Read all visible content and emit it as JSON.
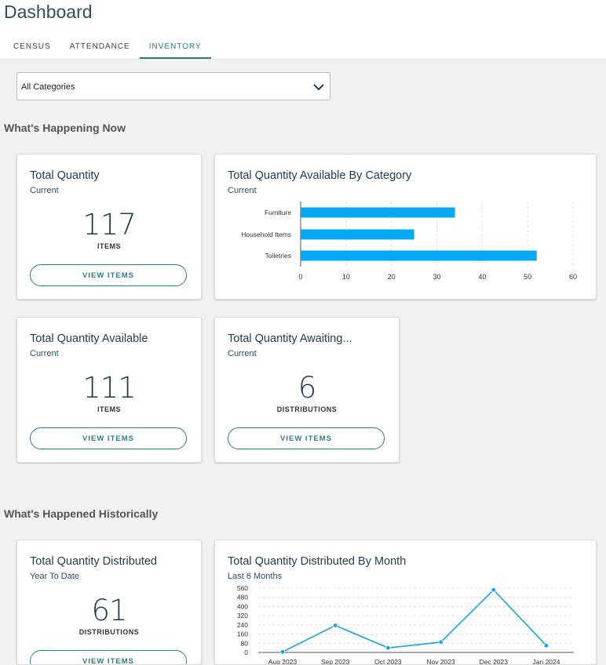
{
  "page": {
    "title": "Dashboard"
  },
  "tabs": [
    {
      "label": "CENSUS"
    },
    {
      "label": "ATTENDANCE"
    },
    {
      "label": "INVENTORY",
      "active": true
    }
  ],
  "filter": {
    "selected": "All Categories",
    "chevron_icon": "chevron-down-icon"
  },
  "sections": {
    "now": "What's Happening Now",
    "historic": "What's Happened Historically"
  },
  "cards": {
    "total_quantity": {
      "title": "Total Quantity",
      "subtitle": "Current",
      "value": "117",
      "unit": "ITEMS",
      "button": "VIEW ITEMS"
    },
    "total_available": {
      "title": "Total Quantity Available",
      "subtitle": "Current",
      "value": "111",
      "unit": "ITEMS",
      "button": "VIEW ITEMS"
    },
    "total_awaiting": {
      "title": "Total Quantity Awaiting...",
      "subtitle": "Current",
      "value": "6",
      "unit": "DISTRIBUTIONS",
      "button": "VIEW ITEMS"
    },
    "total_distributed": {
      "title": "Total Quantity Distributed",
      "subtitle": "Year To Date",
      "value": "61",
      "unit": "DISTRIBUTIONS",
      "button": "VIEW ITEMS"
    },
    "by_category": {
      "title": "Total Quantity Available By Category",
      "subtitle": "Current"
    },
    "by_month": {
      "title": "Total Quantity Distributed By Month",
      "subtitle": "Last 6 Months"
    }
  },
  "colors": {
    "accent": "#2a7f86",
    "bar": "#03a9f4",
    "line": "#1da1e0"
  },
  "chart_data": [
    {
      "type": "bar",
      "orientation": "horizontal",
      "categories": [
        "Furniture",
        "Household Items",
        "Toiletries"
      ],
      "values": [
        34,
        25,
        52
      ],
      "xlim": [
        0,
        60
      ],
      "xticks": [
        0,
        10,
        20,
        30,
        40,
        50,
        60
      ],
      "grid": true,
      "legend": "none"
    },
    {
      "type": "line",
      "categories": [
        "Aug 2023",
        "Sep 2023",
        "Oct 2023",
        "Nov 2023",
        "Dec 2023",
        "Jan 2024"
      ],
      "values": [
        5,
        235,
        40,
        90,
        545,
        60
      ],
      "ylim": [
        0,
        560
      ],
      "yticks": [
        0,
        80,
        160,
        240,
        320,
        400,
        480,
        560
      ],
      "grid": true,
      "legend": "none"
    }
  ]
}
